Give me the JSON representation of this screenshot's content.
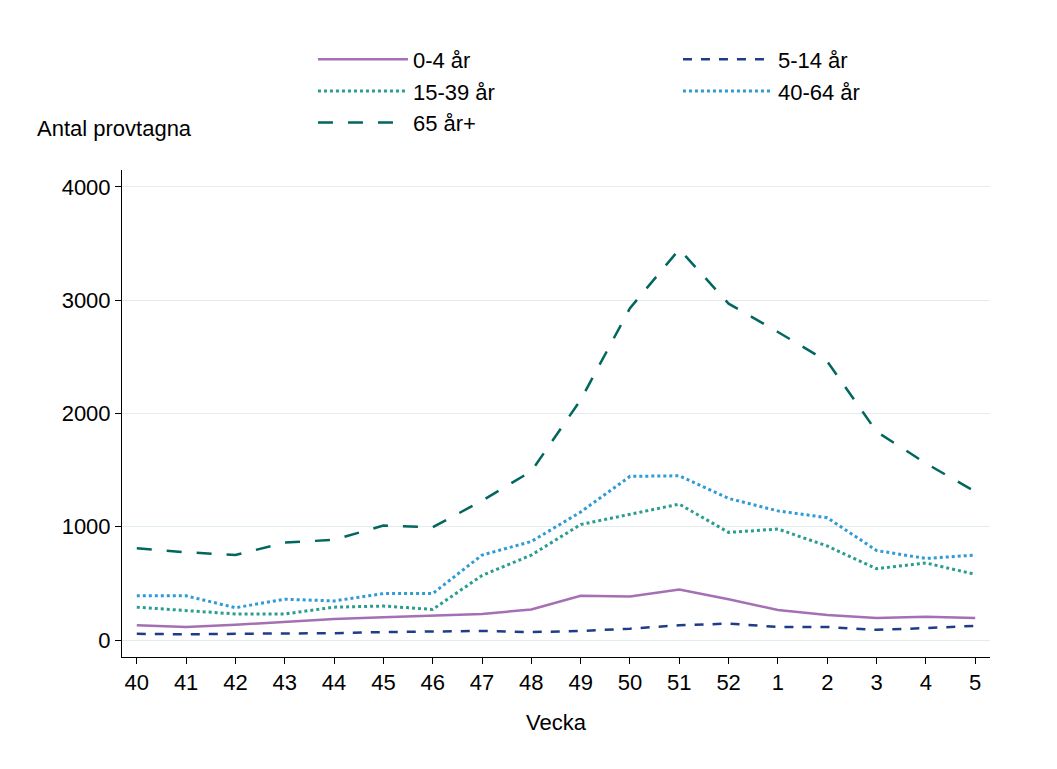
{
  "chart_data": {
    "type": "line",
    "x_label": "Vecka",
    "y_label": "Antal provtagna",
    "categories": [
      "40",
      "41",
      "42",
      "43",
      "44",
      "45",
      "46",
      "47",
      "48",
      "49",
      "50",
      "51",
      "52",
      "1",
      "2",
      "3",
      "4",
      "5"
    ],
    "series": [
      {
        "name": "0-4 år",
        "color": "#a56fb4",
        "line_style": "solid",
        "values": [
          130,
          115,
          135,
          160,
          185,
          200,
          215,
          230,
          270,
          390,
          385,
          445,
          360,
          265,
          220,
          195,
          205,
          195
        ]
      },
      {
        "name": "5-14 år",
        "color": "#1f3c88",
        "line_style": "dash",
        "values": [
          55,
          50,
          55,
          55,
          60,
          70,
          75,
          80,
          70,
          80,
          100,
          130,
          145,
          115,
          115,
          90,
          105,
          125
        ]
      },
      {
        "name": "15-39 år",
        "color": "#2a9d8f",
        "line_style": "dot",
        "values": [
          290,
          260,
          230,
          230,
          290,
          300,
          270,
          570,
          750,
          1020,
          1110,
          1200,
          950,
          980,
          830,
          630,
          680,
          580
        ]
      },
      {
        "name": "40-64 år",
        "color": "#2e9bd6",
        "line_style": "dot",
        "values": [
          390,
          390,
          285,
          360,
          345,
          410,
          410,
          750,
          870,
          1130,
          1445,
          1450,
          1250,
          1140,
          1080,
          790,
          720,
          750
        ]
      },
      {
        "name": "65 år+",
        "color": "#00665e",
        "line_style": "longdash",
        "values": [
          810,
          775,
          750,
          860,
          885,
          1010,
          995,
          1230,
          1490,
          2120,
          2930,
          3450,
          2970,
          2720,
          2460,
          1840,
          1560,
          1310
        ]
      }
    ],
    "ylim": [
      -150,
      4150
    ],
    "yticks": [
      0,
      1000,
      2000,
      3000,
      4000
    ],
    "grid": true,
    "legend": "top"
  }
}
